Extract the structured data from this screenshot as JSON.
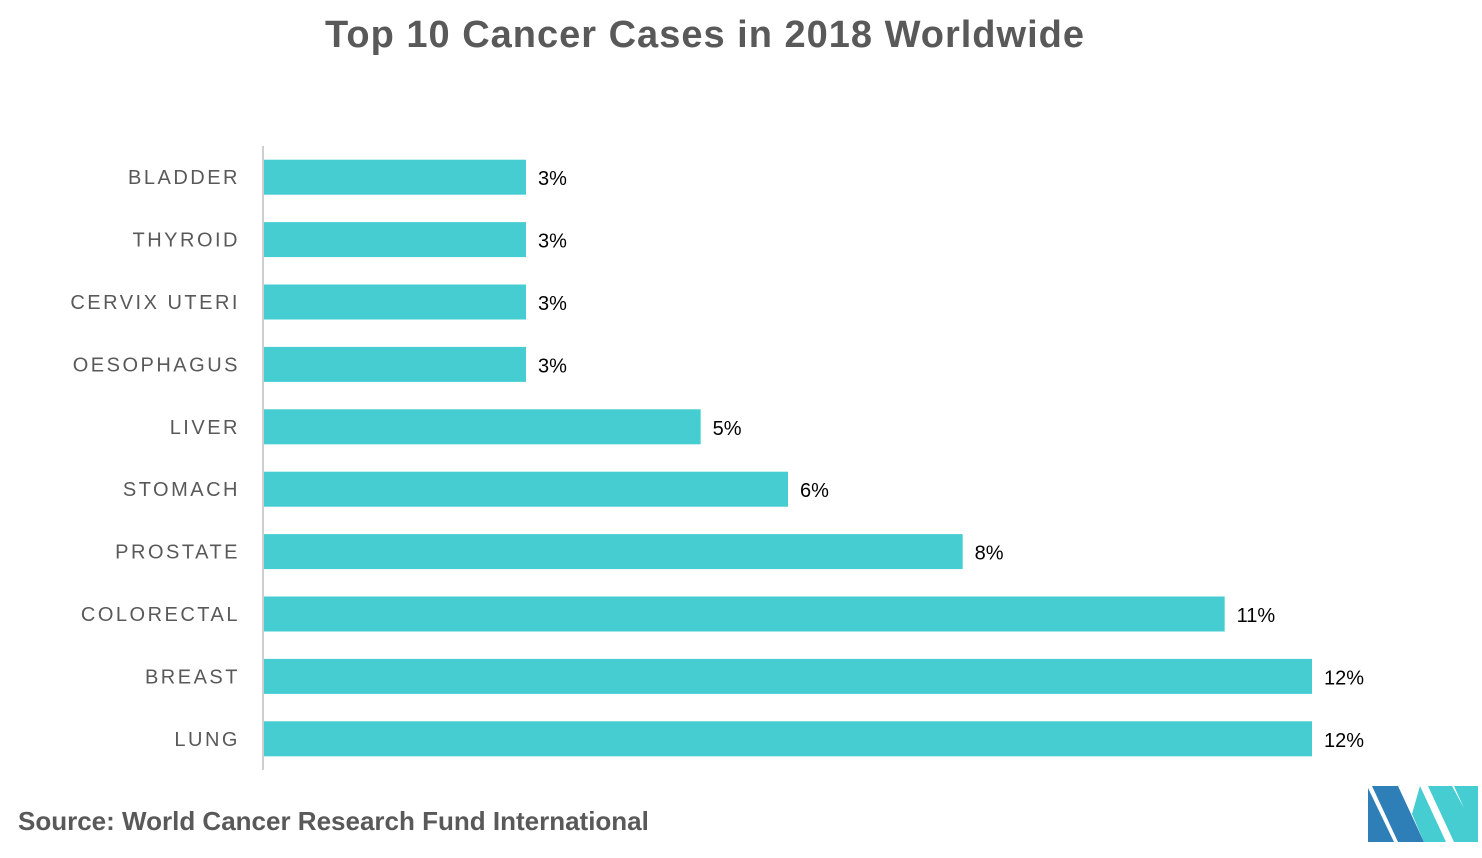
{
  "title": "Top 10 Cancer Cases in 2018 Worldwide",
  "source": "Source: World Cancer Research Fund International",
  "colors": {
    "bar": "#45CDD1",
    "axis": "#BFBFBF",
    "logo_dark": "#2E7EB8",
    "logo_light": "#45CDD1"
  },
  "icons": {
    "logo": "company-logo-icon"
  },
  "chart_data": {
    "type": "bar",
    "orientation": "horizontal",
    "title": "Top 10 Cancer Cases in 2018 Worldwide",
    "categories": [
      "BLADDER",
      "THYROID",
      "CERVIX UTERI",
      "OESOPHAGUS",
      "LIVER",
      "STOMACH",
      "PROSTATE",
      "COLORECTAL",
      "BREAST",
      "LUNG"
    ],
    "values": [
      3,
      3,
      3,
      3,
      5,
      6,
      8,
      11,
      12,
      12
    ],
    "value_labels": [
      "3%",
      "3%",
      "3%",
      "3%",
      "5%",
      "6%",
      "8%",
      "11%",
      "12%",
      "12%"
    ],
    "unit": "%",
    "grid": false,
    "legend": "none"
  }
}
